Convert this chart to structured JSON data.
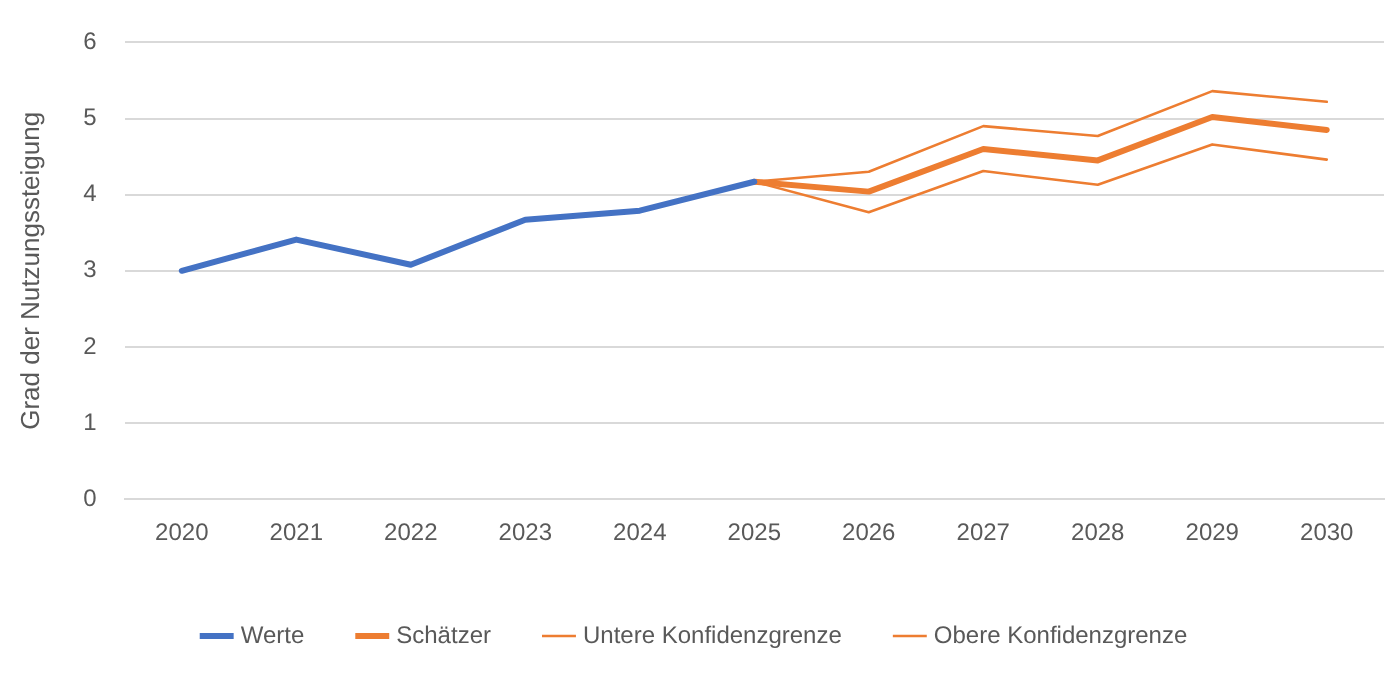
{
  "chart_data": {
    "type": "line",
    "ylabel": "Grad der Nutzungssteigung",
    "categories": [
      "2020",
      "2021",
      "2022",
      "2023",
      "2024",
      "2025",
      "2026",
      "2027",
      "2028",
      "2029",
      "2030"
    ],
    "series": [
      {
        "name": "Werte",
        "color": "#4472c4",
        "values": [
          3.0,
          3.41,
          3.08,
          3.67,
          3.79,
          4.17,
          null,
          null,
          null,
          null,
          null
        ]
      },
      {
        "name": "Schätzer",
        "color": "#ed7d31",
        "values": [
          null,
          null,
          null,
          null,
          null,
          4.17,
          4.04,
          4.6,
          4.45,
          5.02,
          4.85
        ]
      },
      {
        "name": "Untere Konfidenzgrenze",
        "color": "#ed7d31",
        "values": [
          null,
          null,
          null,
          null,
          null,
          4.17,
          3.77,
          4.31,
          4.13,
          4.66,
          4.46
        ]
      },
      {
        "name": "Obere Konfidenzgrenze",
        "color": "#ed7d31",
        "values": [
          null,
          null,
          null,
          null,
          null,
          4.17,
          4.3,
          4.9,
          4.77,
          5.36,
          5.22
        ]
      }
    ],
    "ylim": [
      0,
      6
    ],
    "yticks": [
      0,
      1,
      2,
      3,
      4,
      5,
      6
    ],
    "grid": "y",
    "legend": "bottom",
    "marker": "none",
    "line_style": "solid"
  }
}
